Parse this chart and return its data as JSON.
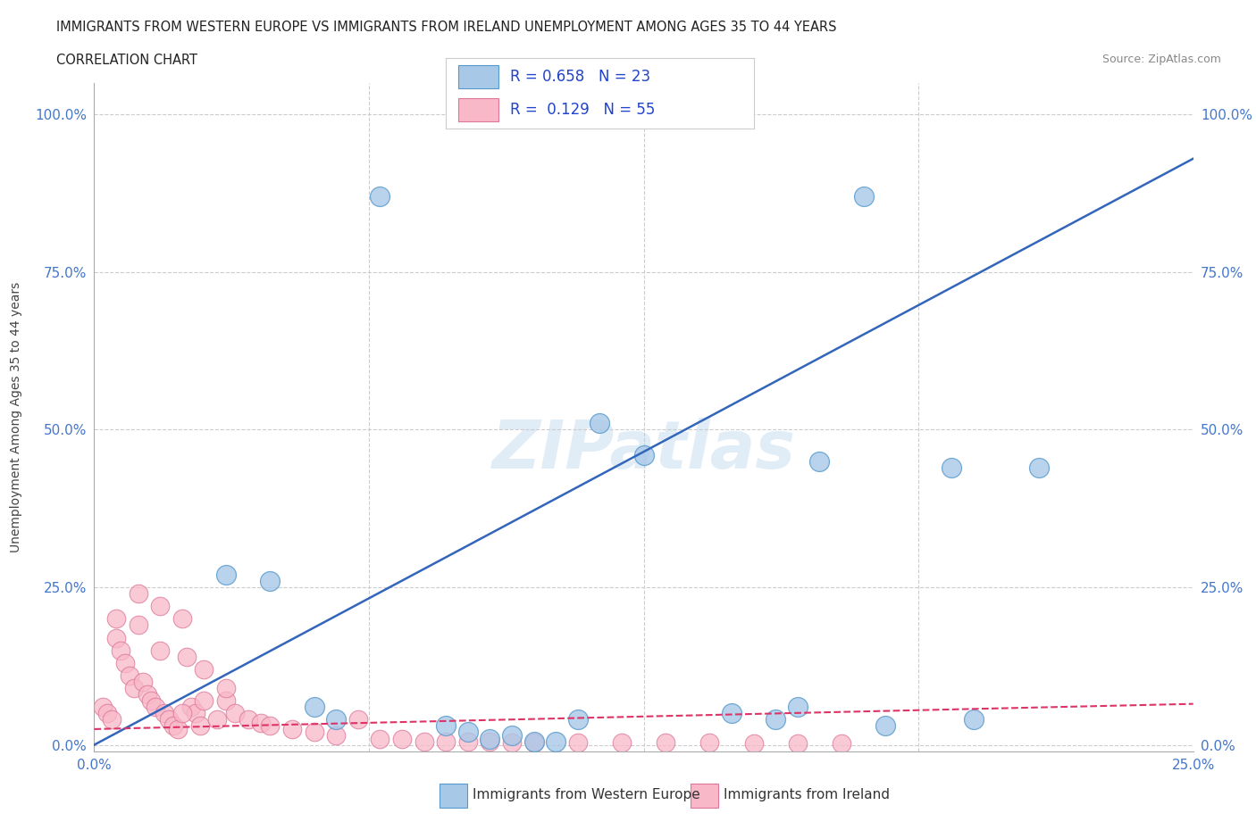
{
  "title_line1": "IMMIGRANTS FROM WESTERN EUROPE VS IMMIGRANTS FROM IRELAND UNEMPLOYMENT AMONG AGES 35 TO 44 YEARS",
  "title_line2": "CORRELATION CHART",
  "source_text": "Source: ZipAtlas.com",
  "ylabel": "Unemployment Among Ages 35 to 44 years",
  "xlim": [
    0.0,
    0.25
  ],
  "ylim": [
    -0.01,
    1.05
  ],
  "ytick_values": [
    0.0,
    0.25,
    0.5,
    0.75,
    1.0
  ],
  "ytick_labels": [
    "0.0%",
    "25.0%",
    "50.0%",
    "75.0%",
    "100.0%"
  ],
  "xtick_values": [
    0.0,
    0.25
  ],
  "xtick_labels": [
    "0.0%",
    "25.0%"
  ],
  "watermark": "ZIPatlas",
  "blue_color": "#a8c8e8",
  "blue_edge_color": "#5599cc",
  "pink_color": "#f8b8c8",
  "pink_edge_color": "#dd7799",
  "blue_line_color": "#3366bb",
  "pink_line_color": "#dd3366",
  "blue_scatter_x": [
    0.065,
    0.175,
    0.115,
    0.125,
    0.165,
    0.195,
    0.215,
    0.03,
    0.04,
    0.05,
    0.055,
    0.08,
    0.085,
    0.09,
    0.095,
    0.1,
    0.105,
    0.11,
    0.145,
    0.155,
    0.16,
    0.18,
    0.2
  ],
  "blue_scatter_y": [
    0.87,
    0.87,
    0.51,
    0.46,
    0.45,
    0.44,
    0.44,
    0.27,
    0.26,
    0.06,
    0.04,
    0.03,
    0.02,
    0.01,
    0.015,
    0.005,
    0.005,
    0.04,
    0.05,
    0.04,
    0.06,
    0.03,
    0.04
  ],
  "pink_scatter_x": [
    0.002,
    0.003,
    0.004,
    0.005,
    0.005,
    0.006,
    0.007,
    0.008,
    0.009,
    0.01,
    0.01,
    0.011,
    0.012,
    0.013,
    0.014,
    0.015,
    0.015,
    0.016,
    0.017,
    0.018,
    0.019,
    0.02,
    0.021,
    0.022,
    0.023,
    0.024,
    0.025,
    0.028,
    0.03,
    0.032,
    0.035,
    0.038,
    0.04,
    0.045,
    0.05,
    0.055,
    0.06,
    0.065,
    0.07,
    0.075,
    0.08,
    0.085,
    0.09,
    0.095,
    0.1,
    0.11,
    0.12,
    0.13,
    0.14,
    0.15,
    0.16,
    0.17,
    0.03,
    0.025,
    0.02
  ],
  "pink_scatter_y": [
    0.06,
    0.05,
    0.04,
    0.2,
    0.17,
    0.15,
    0.13,
    0.11,
    0.09,
    0.24,
    0.19,
    0.1,
    0.08,
    0.07,
    0.06,
    0.22,
    0.15,
    0.05,
    0.04,
    0.03,
    0.025,
    0.2,
    0.14,
    0.06,
    0.05,
    0.03,
    0.12,
    0.04,
    0.07,
    0.05,
    0.04,
    0.035,
    0.03,
    0.025,
    0.02,
    0.015,
    0.04,
    0.01,
    0.01,
    0.005,
    0.005,
    0.005,
    0.005,
    0.004,
    0.003,
    0.003,
    0.003,
    0.003,
    0.003,
    0.002,
    0.002,
    0.002,
    0.09,
    0.07,
    0.05
  ],
  "blue_line_x": [
    0.0,
    0.25
  ],
  "blue_line_y": [
    0.0,
    0.93
  ],
  "pink_line_x": [
    0.0,
    0.25
  ],
  "pink_line_y": [
    0.025,
    0.065
  ],
  "grid_color": "#cccccc",
  "background_color": "#ffffff",
  "tick_color": "#4477cc",
  "legend_blue_text": "R = 0.658   N = 23",
  "legend_pink_text": "R =  0.129   N = 55",
  "bottom_legend_blue": "Immigrants from Western Europe",
  "bottom_legend_pink": "Immigrants from Ireland"
}
